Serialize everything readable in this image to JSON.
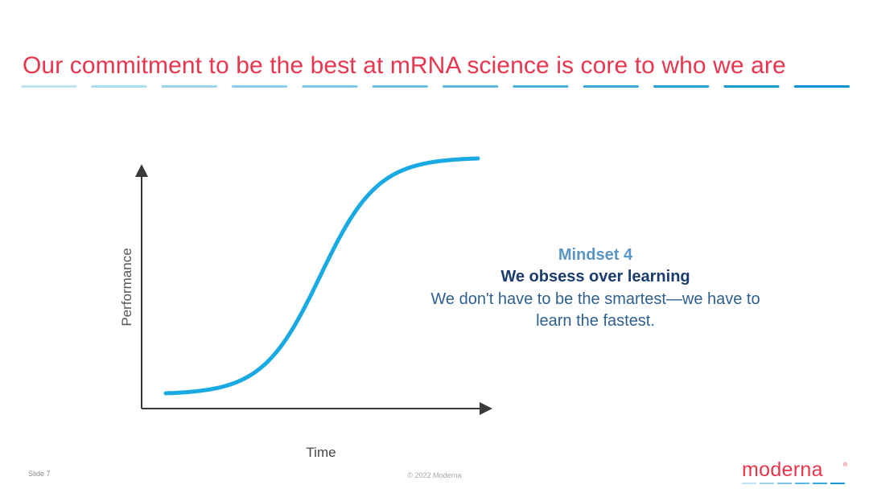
{
  "slide": {
    "title": "Our commitment to be the best at mRNA science is core to who we are",
    "title_color": "#e8364f",
    "dash_colors": [
      "#bfe3f2",
      "#aedcf0",
      "#9dd5ee",
      "#8dcdeb",
      "#7cc6e8",
      "#6bbfe5",
      "#5ab8e3",
      "#4ab0e0",
      "#39a9dd",
      "#28a2da",
      "#1a9bd7",
      "#0f93d3"
    ]
  },
  "chart": {
    "ylabel": "Performance",
    "xlabel": "Time",
    "curve_color": "#19a9e3",
    "axis_color": "#3a3a3a"
  },
  "mindset": {
    "label": "Mindset 4",
    "heading": "We obsess over learning",
    "body_line1": "We don't have to be the smartest—we have to",
    "body_line2": "learn the fastest."
  },
  "footer": {
    "slide_number": "Slide 7",
    "copyright": "© 2022 Moderna",
    "logo": "moderna",
    "logo_mark": "®",
    "logo_color": "#e8364f"
  }
}
